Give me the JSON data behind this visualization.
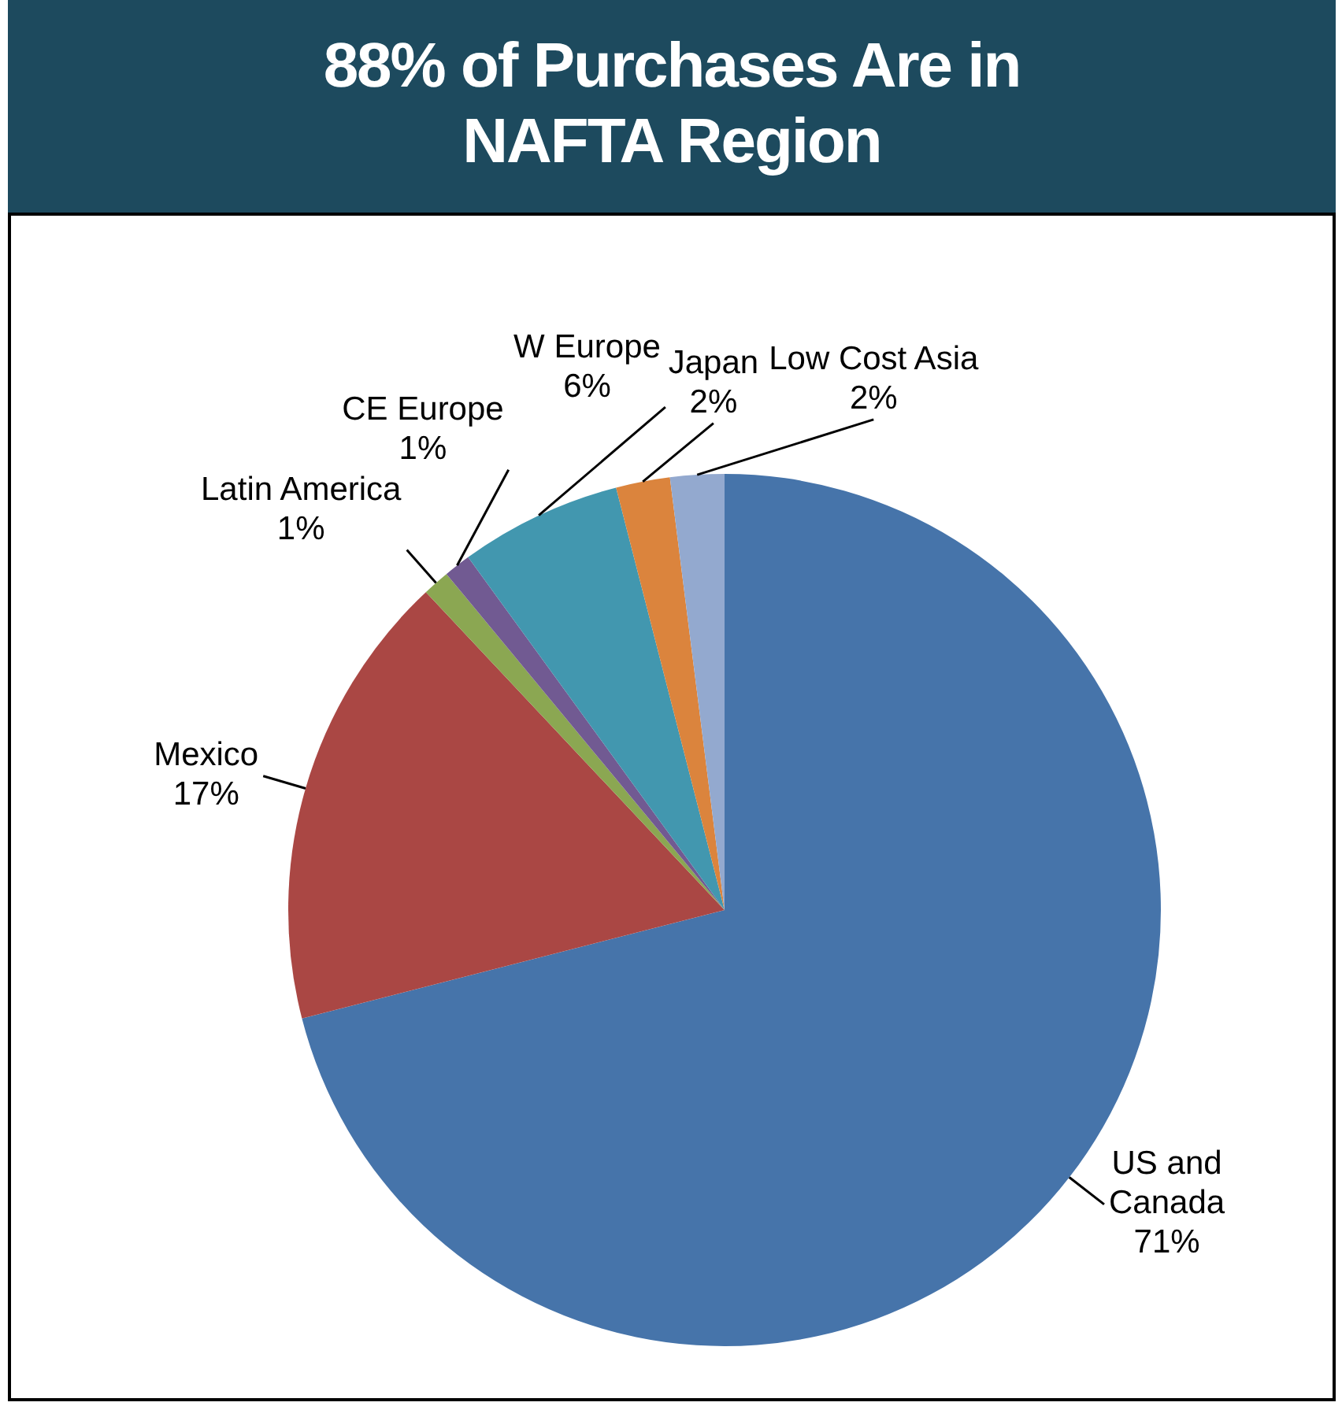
{
  "chart_data": {
    "type": "pie",
    "title": "88% of Purchases Are in NAFTA Region",
    "categories": [
      "US and Canada",
      "Mexico",
      "Latin America",
      "CE Europe",
      "W Europe",
      "Japan",
      "Low Cost Asia"
    ],
    "values": [
      71,
      17,
      1,
      1,
      6,
      2,
      2
    ],
    "value_labels": [
      "71%",
      "17%",
      "1%",
      "1%",
      "6%",
      "2%",
      "2%"
    ],
    "colors": [
      "#4674aa",
      "#aa4744",
      "#8ba752",
      "#715a92",
      "#4297af",
      "#db843d",
      "#93a9cf"
    ],
    "legend": false
  }
}
